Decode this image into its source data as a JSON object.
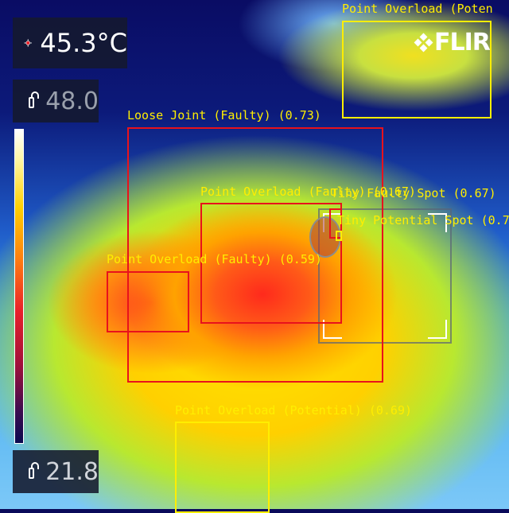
{
  "readouts": {
    "spot_temp": "45.3°C",
    "max_lock": "48.0",
    "min_lock": "21.8"
  },
  "logo": {
    "text": "FLIR"
  },
  "colors": {
    "faulty_box": "#e8121c",
    "potential_box": "#ffee00",
    "label_text": "#ffee00"
  },
  "detections": [
    {
      "label": "Point Overload (Poten",
      "type": "potential"
    },
    {
      "label": "Loose Joint (Faulty) (0.73)",
      "type": "faulty"
    },
    {
      "label": "Point Overload (Faulty) (0.67)",
      "type": "faulty"
    },
    {
      "label": "Tiny Faulty Spot (0.67)",
      "type": "faulty"
    },
    {
      "label": "Tiny Potential Spot (0.7",
      "type": "potential"
    },
    {
      "label": "Point Overload (Faulty) (0.59)",
      "type": "faulty"
    },
    {
      "label": "Point Overload (Potential) (0.69)",
      "type": "potential"
    }
  ]
}
